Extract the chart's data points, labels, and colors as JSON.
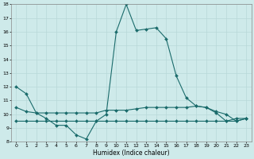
{
  "xlabel": "Humidex (Indice chaleur)",
  "x": [
    0,
    1,
    2,
    3,
    4,
    5,
    6,
    7,
    8,
    9,
    10,
    11,
    12,
    13,
    14,
    15,
    16,
    17,
    18,
    19,
    20,
    21,
    22,
    23
  ],
  "line1": [
    12,
    11.5,
    10.1,
    9.7,
    9.2,
    9.2,
    8.5,
    8.2,
    9.5,
    10.0,
    16.0,
    18.0,
    16.1,
    16.2,
    16.3,
    15.5,
    12.8,
    11.2,
    10.6,
    10.5,
    10.1,
    9.5,
    9.7,
    9.7
  ],
  "line2": [
    10.5,
    10.2,
    10.1,
    10.1,
    10.1,
    10.1,
    10.1,
    10.1,
    10.1,
    10.3,
    10.3,
    10.3,
    10.4,
    10.5,
    10.5,
    10.5,
    10.5,
    10.5,
    10.6,
    10.5,
    10.2,
    10.0,
    9.5,
    9.7
  ],
  "line3": [
    9.5,
    9.5,
    9.5,
    9.5,
    9.5,
    9.5,
    9.5,
    9.5,
    9.5,
    9.5,
    9.5,
    9.5,
    9.5,
    9.5,
    9.5,
    9.5,
    9.5,
    9.5,
    9.5,
    9.5,
    9.5,
    9.5,
    9.5,
    9.7
  ],
  "bg_color": "#ceeaea",
  "grid_color": "#b8d8d8",
  "line_color": "#1a6b6b",
  "ylim": [
    8,
    18
  ],
  "xlim": [
    -0.5,
    23.5
  ],
  "yticks": [
    8,
    9,
    10,
    11,
    12,
    13,
    14,
    15,
    16,
    17,
    18
  ],
  "xticks": [
    0,
    1,
    2,
    3,
    4,
    5,
    6,
    7,
    8,
    9,
    10,
    11,
    12,
    13,
    14,
    15,
    16,
    17,
    18,
    19,
    20,
    21,
    22,
    23
  ]
}
